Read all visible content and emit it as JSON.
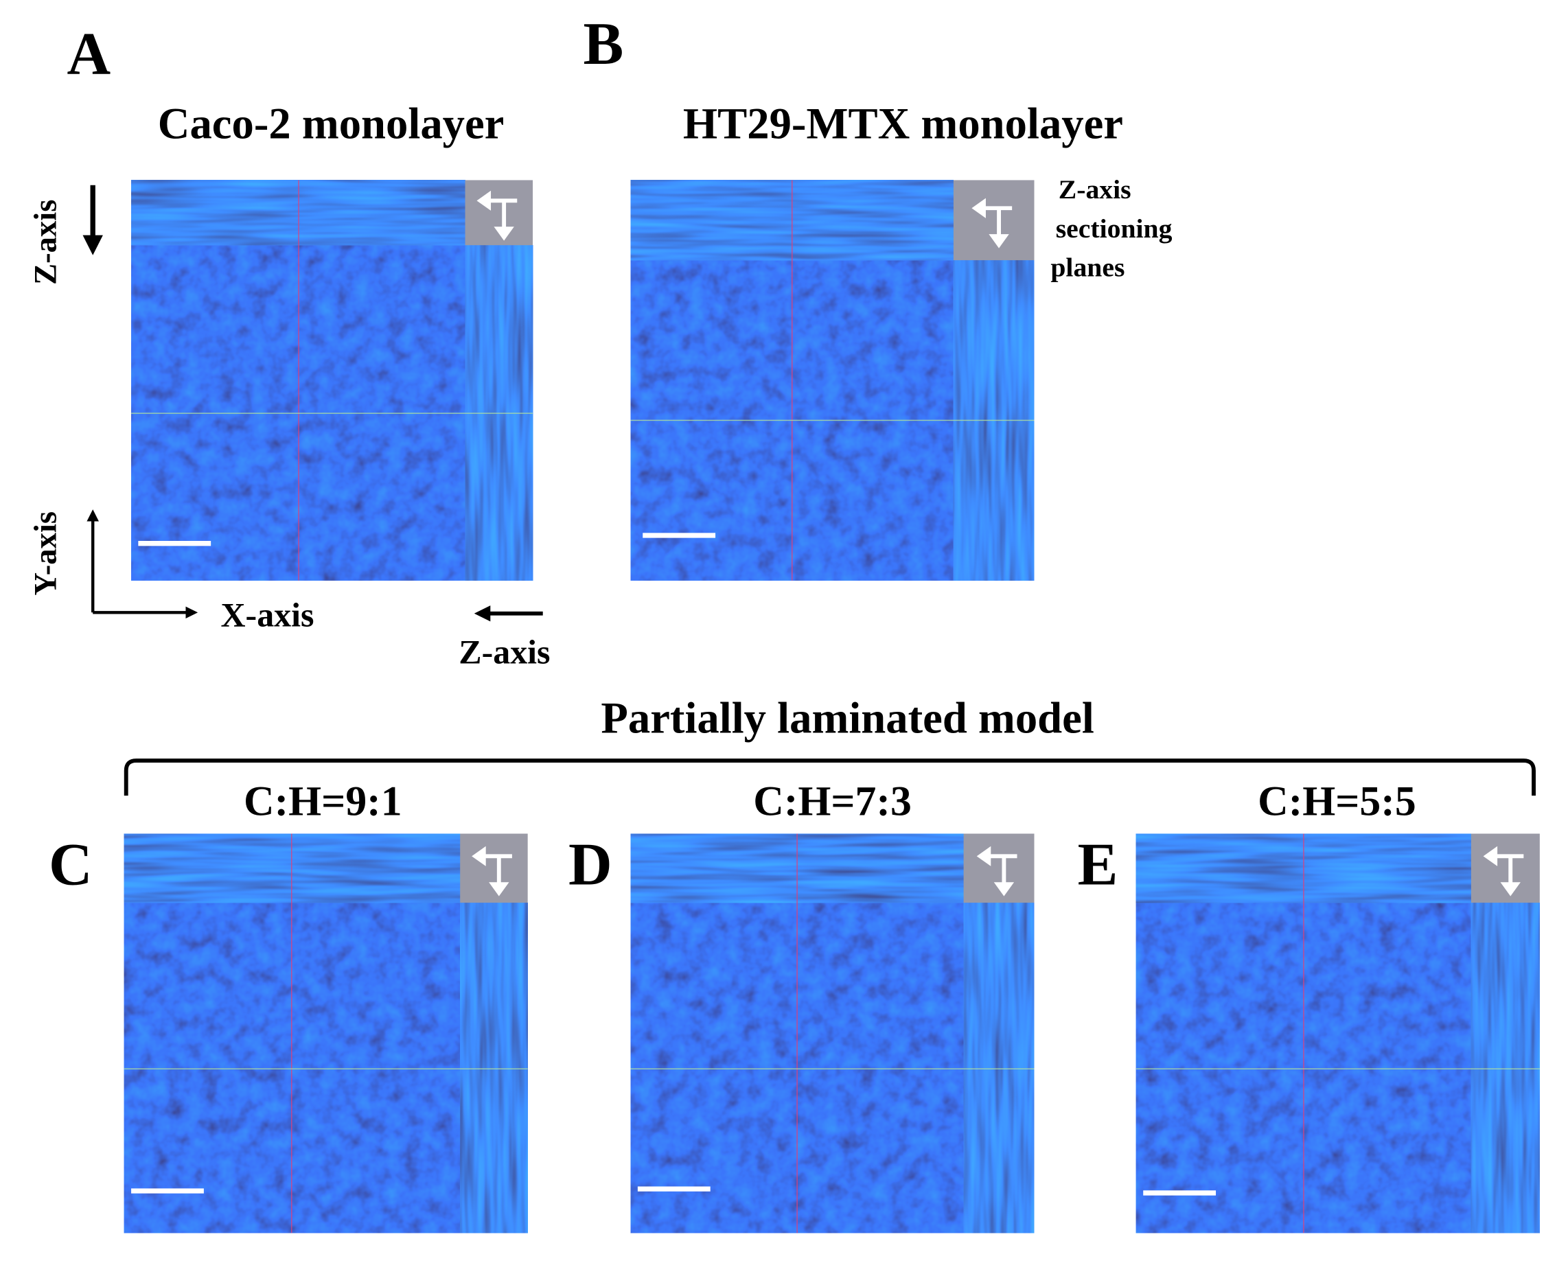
{
  "panels": [
    {
      "letter": "A",
      "title": "Caco-2 monolayer"
    },
    {
      "letter": "B",
      "title": "HT29-MTX monolayer"
    },
    {
      "letter": "C",
      "title": "C:H=9:1"
    },
    {
      "letter": "D",
      "title": "C:H=7:3"
    },
    {
      "letter": "E",
      "title": "C:H=5:5"
    }
  ],
  "axes": {
    "z_top": "Z-axis",
    "y": "Y-axis",
    "x": "X-axis",
    "z_bottom": "Z-axis"
  },
  "sectioning_note": [
    "Z-axis",
    "sectioning",
    "planes"
  ],
  "group_title": "Partially laminated model"
}
